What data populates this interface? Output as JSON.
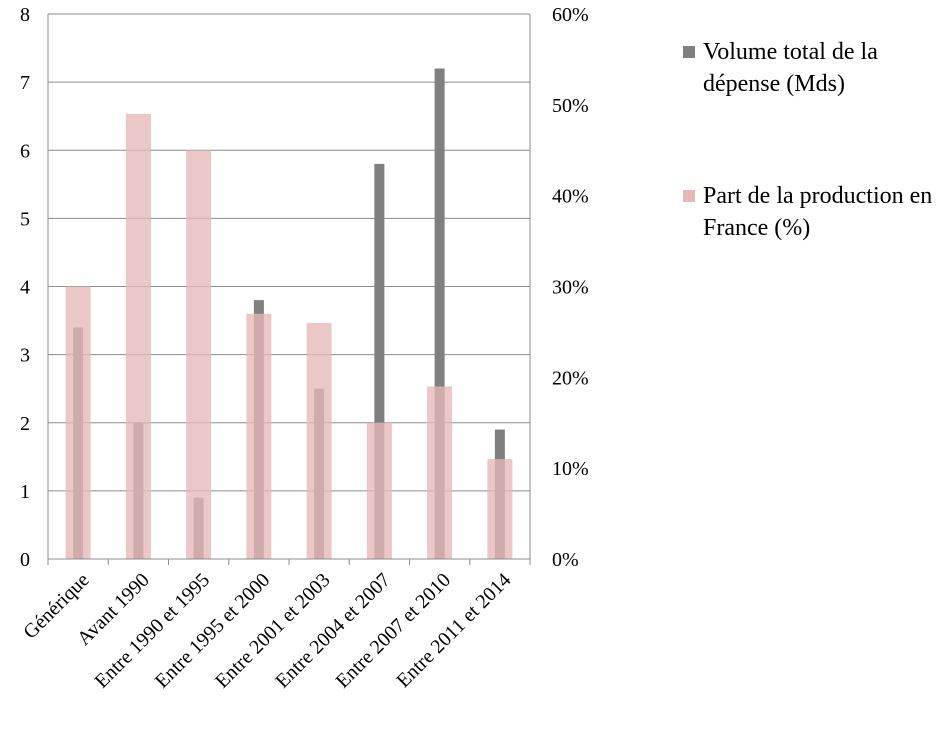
{
  "chart_data": {
    "type": "bar",
    "categories": [
      "Générique",
      "Avant 1990",
      "Entre 1990 et 1995",
      "Entre 1995 et 2000",
      "Entre 2001 et 2003",
      "Entre 2004 et 2007",
      "Entre 2007 et 2010",
      "Entre 2011 et 2014"
    ],
    "series": [
      {
        "name": "Volume total de la dépense (Mds)",
        "axis": "left",
        "color": "#7f7f7f",
        "values": [
          3.4,
          2.0,
          0.9,
          3.8,
          2.5,
          5.8,
          7.2,
          1.9
        ]
      },
      {
        "name": "Part de la production en France (%)",
        "axis": "right",
        "color": "#e6b8b7",
        "values": [
          30,
          49,
          45,
          27,
          26,
          15,
          19,
          11
        ]
      }
    ],
    "ylim": [
      0,
      8
    ],
    "yticks": [
      "0",
      "1",
      "2",
      "3",
      "4",
      "5",
      "6",
      "7",
      "8"
    ],
    "y2lim": [
      0,
      60
    ],
    "y2ticks": [
      "0%",
      "10%",
      "20%",
      "30%",
      "40%",
      "50%",
      "60%"
    ],
    "grid": true,
    "legend_position": "right"
  }
}
